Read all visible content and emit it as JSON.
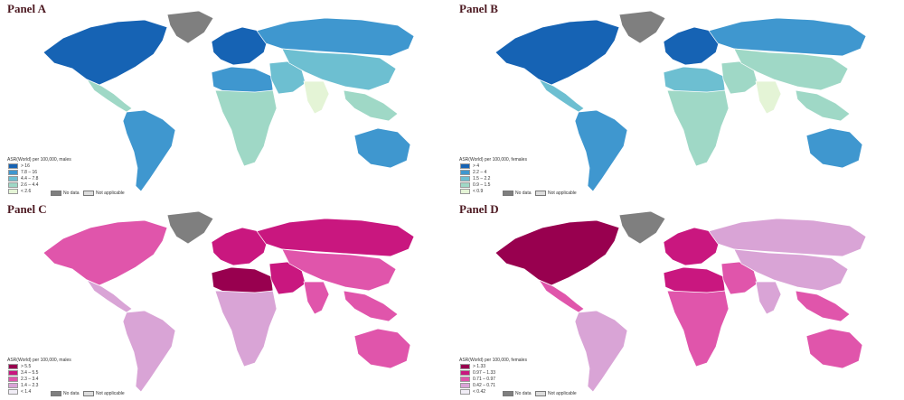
{
  "panels": [
    {
      "title": "Panel A",
      "legend_title": "ASR(World) per 100,000, males",
      "classes": [
        {
          "label": "> 16",
          "color": "#1663b4"
        },
        {
          "label": "7.8 – 16",
          "color": "#3f97cf"
        },
        {
          "label": "4.4 – 7.8",
          "color": "#6dbfd1"
        },
        {
          "label": "2.6 – 4.4",
          "color": "#9fd8c6"
        },
        {
          "label": "< 2.6",
          "color": "#e4f4d6"
        }
      ],
      "no_data_label": "No data",
      "not_applicable_label": "Not applicable",
      "regions": {
        "north_america": 0,
        "greenland": "nodata",
        "central_america": 3,
        "south_america": 1,
        "europe": 0,
        "russia": 1,
        "north_africa": 1,
        "africa": 3,
        "middle_east": 2,
        "asia": 2,
        "india": 4,
        "southeast_asia": 3,
        "australia": 1
      }
    },
    {
      "title": "Panel B",
      "legend_title": "ASR(World) per 100,000, females",
      "classes": [
        {
          "label": "> 4",
          "color": "#1663b4"
        },
        {
          "label": "2.2 – 4",
          "color": "#3f97cf"
        },
        {
          "label": "1.5 – 2.2",
          "color": "#6dbfd1"
        },
        {
          "label": "0.9 – 1.5",
          "color": "#9fd8c6"
        },
        {
          "label": "< 0.9",
          "color": "#e4f4d6"
        }
      ],
      "no_data_label": "No data",
      "not_applicable_label": "Not applicable",
      "regions": {
        "north_america": 0,
        "greenland": "nodata",
        "central_america": 2,
        "south_america": 1,
        "europe": 0,
        "russia": 1,
        "north_africa": 2,
        "africa": 3,
        "middle_east": 3,
        "asia": 3,
        "india": 4,
        "southeast_asia": 3,
        "australia": 1
      }
    },
    {
      "title": "Panel C",
      "legend_title": "ASR(World) per 100,000, males",
      "classes": [
        {
          "label": "> 5.5",
          "color": "#98004f"
        },
        {
          "label": "3.4 – 5.5",
          "color": "#c9177f"
        },
        {
          "label": "2.3 – 3.4",
          "color": "#e055ab"
        },
        {
          "label": "1.4 – 2.3",
          "color": "#d9a4d6"
        },
        {
          "label": "< 1.4",
          "color": "#f1edf6"
        }
      ],
      "no_data_label": "No data",
      "not_applicable_label": "Not applicable",
      "regions": {
        "north_america": 2,
        "greenland": "nodata",
        "central_america": 3,
        "south_america": 3,
        "europe": 1,
        "russia": 1,
        "north_africa": 0,
        "africa": 3,
        "middle_east": 1,
        "asia": 2,
        "india": 2,
        "southeast_asia": 2,
        "australia": 2
      }
    },
    {
      "title": "Panel D",
      "legend_title": "ASR(World) per 100,000, females",
      "classes": [
        {
          "label": "> 1.33",
          "color": "#98004f"
        },
        {
          "label": "0.97 – 1.33",
          "color": "#c9177f"
        },
        {
          "label": "0.71 – 0.97",
          "color": "#e055ab"
        },
        {
          "label": "0.42 – 0.71",
          "color": "#d9a4d6"
        },
        {
          "label": "< 0.42",
          "color": "#f1edf6"
        }
      ],
      "no_data_label": "No data",
      "not_applicable_label": "Not applicable",
      "regions": {
        "north_america": 0,
        "greenland": "nodata",
        "central_america": 2,
        "south_america": 3,
        "europe": 1,
        "russia": 3,
        "north_africa": 1,
        "africa": 2,
        "middle_east": 2,
        "asia": 3,
        "india": 3,
        "southeast_asia": 2,
        "australia": 2
      }
    }
  ],
  "colors": {
    "no_data": "#7f7f7f",
    "not_applicable": "#dcdcdc",
    "border": "#ffffff"
  }
}
